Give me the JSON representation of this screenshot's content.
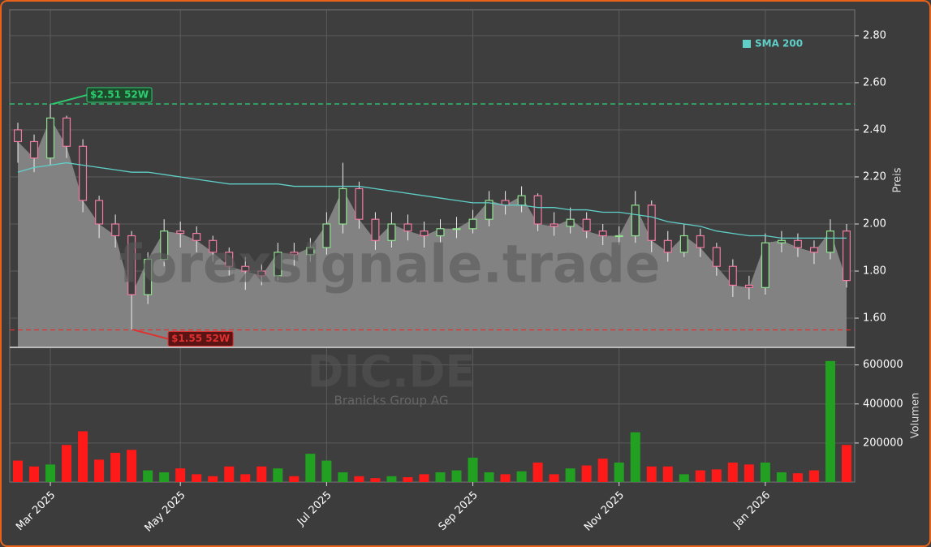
{
  "chart_data": {
    "type": "candlestick",
    "title": "DIC.DE",
    "subtitle": "Branicks Group AG",
    "watermark": "forexsignale.trade",
    "categories": [
      null,
      null,
      "Mar 2025",
      null,
      null,
      null,
      null,
      null,
      null,
      null,
      "May 2025",
      null,
      null,
      null,
      null,
      null,
      null,
      null,
      null,
      "Jul 2025",
      null,
      null,
      null,
      null,
      null,
      null,
      null,
      null,
      "Sep 2025",
      null,
      null,
      null,
      null,
      null,
      null,
      null,
      null,
      "Nov 2025",
      null,
      null,
      null,
      null,
      null,
      null,
      null,
      null,
      "Jan 2026",
      null,
      null,
      null,
      null,
      null
    ],
    "open": [
      2.4,
      2.35,
      2.28,
      2.45,
      2.33,
      2.1,
      2.0,
      1.95,
      1.7,
      1.85,
      1.97,
      1.96,
      1.93,
      1.88,
      1.82,
      1.8,
      1.78,
      1.88,
      1.87,
      1.9,
      2.0,
      2.15,
      2.02,
      1.93,
      2.0,
      1.97,
      1.95,
      1.98,
      1.98,
      2.02,
      2.1,
      2.08,
      2.12,
      2.0,
      1.99,
      2.02,
      1.97,
      1.95,
      1.95,
      2.08,
      1.93,
      1.88,
      1.95,
      1.9,
      1.82,
      1.74,
      1.73,
      1.92,
      1.93,
      1.9,
      1.88,
      1.97
    ],
    "high": [
      2.43,
      2.38,
      2.51,
      2.46,
      2.36,
      2.12,
      2.04,
      1.97,
      1.88,
      2.02,
      2.01,
      1.99,
      1.95,
      1.9,
      1.86,
      1.83,
      1.92,
      1.92,
      1.94,
      2.05,
      2.26,
      2.18,
      2.05,
      2.05,
      2.04,
      2.01,
      2.02,
      2.03,
      2.06,
      2.14,
      2.14,
      2.16,
      2.13,
      2.05,
      2.07,
      2.05,
      2.0,
      1.99,
      2.14,
      2.1,
      1.97,
      2.0,
      1.98,
      1.92,
      1.85,
      1.78,
      1.96,
      1.97,
      1.96,
      1.93,
      2.02,
      2.0
    ],
    "low": [
      2.26,
      2.22,
      2.25,
      2.28,
      2.05,
      1.94,
      1.9,
      1.55,
      1.66,
      1.82,
      1.9,
      1.88,
      1.84,
      1.78,
      1.72,
      1.74,
      1.76,
      1.82,
      1.84,
      1.87,
      1.96,
      1.98,
      1.89,
      1.9,
      1.93,
      1.9,
      1.92,
      1.94,
      1.96,
      1.99,
      2.04,
      2.05,
      1.97,
      1.95,
      1.96,
      1.94,
      1.91,
      1.91,
      1.92,
      1.88,
      1.84,
      1.86,
      1.86,
      1.78,
      1.69,
      1.68,
      1.7,
      1.88,
      1.86,
      1.83,
      1.85,
      1.73
    ],
    "close": [
      2.35,
      2.28,
      2.45,
      2.33,
      2.1,
      2.0,
      1.95,
      1.7,
      1.85,
      1.97,
      1.96,
      1.93,
      1.88,
      1.82,
      1.8,
      1.78,
      1.88,
      1.87,
      1.9,
      2.0,
      2.15,
      2.02,
      1.93,
      2.0,
      1.97,
      1.95,
      1.98,
      1.98,
      2.02,
      2.1,
      2.08,
      2.12,
      2.0,
      1.99,
      2.02,
      1.97,
      1.95,
      1.95,
      2.08,
      1.93,
      1.88,
      1.95,
      1.9,
      1.82,
      1.74,
      1.73,
      1.92,
      1.93,
      1.9,
      1.88,
      1.97,
      1.76
    ],
    "up_color": "#8fe08f",
    "down_color": "#f07aa0",
    "area_color": "#828282",
    "ylabel": "Preis",
    "ylim": [
      1.476,
      2.91
    ],
    "yticks": [
      {
        "value": 1.6,
        "label": "1.60"
      },
      {
        "value": 1.8,
        "label": "1.80"
      },
      {
        "value": 2.0,
        "label": "2.00"
      },
      {
        "value": 2.2,
        "label": "2.20"
      },
      {
        "value": 2.4,
        "label": "2.40"
      },
      {
        "value": 2.6,
        "label": "2.60"
      },
      {
        "value": 2.8,
        "label": "2.80"
      }
    ],
    "grid": true,
    "sma": {
      "name": "SMA 200",
      "color": "#5fcfc7",
      "values": [
        2.22,
        2.24,
        2.25,
        2.26,
        2.25,
        2.24,
        2.23,
        2.22,
        2.22,
        2.21,
        2.2,
        2.19,
        2.18,
        2.17,
        2.17,
        2.17,
        2.17,
        2.16,
        2.16,
        2.16,
        2.16,
        2.16,
        2.15,
        2.14,
        2.13,
        2.12,
        2.11,
        2.1,
        2.09,
        2.09,
        2.08,
        2.08,
        2.07,
        2.07,
        2.06,
        2.06,
        2.05,
        2.05,
        2.04,
        2.03,
        2.01,
        2.0,
        1.99,
        1.97,
        1.96,
        1.95,
        1.95,
        1.94,
        1.94,
        1.94,
        1.94,
        1.94
      ]
    },
    "hlines": [
      {
        "value": 2.51,
        "label": "$2.51 52W",
        "color": "#2ecc71",
        "index": 2
      },
      {
        "value": 1.55,
        "label": "$1.55 52W",
        "color": "#e03030",
        "index": 7
      }
    ],
    "volume": {
      "label": "Volumen",
      "up_color": "#22a022",
      "down_color": "#ff1a1a",
      "values": [
        110000,
        80000,
        90000,
        190000,
        260000,
        115000,
        150000,
        165000,
        60000,
        50000,
        70000,
        40000,
        30000,
        80000,
        40000,
        80000,
        70000,
        30000,
        145000,
        110000,
        50000,
        30000,
        20000,
        30000,
        25000,
        40000,
        50000,
        60000,
        125000,
        50000,
        40000,
        55000,
        100000,
        40000,
        70000,
        85000,
        120000,
        100000,
        255000,
        80000,
        80000,
        40000,
        60000,
        65000,
        100000,
        90000,
        100000,
        50000,
        45000,
        60000,
        620000,
        190000
      ],
      "ylim": [
        0,
        690000
      ],
      "yticks": [
        200000,
        400000,
        600000
      ]
    }
  }
}
